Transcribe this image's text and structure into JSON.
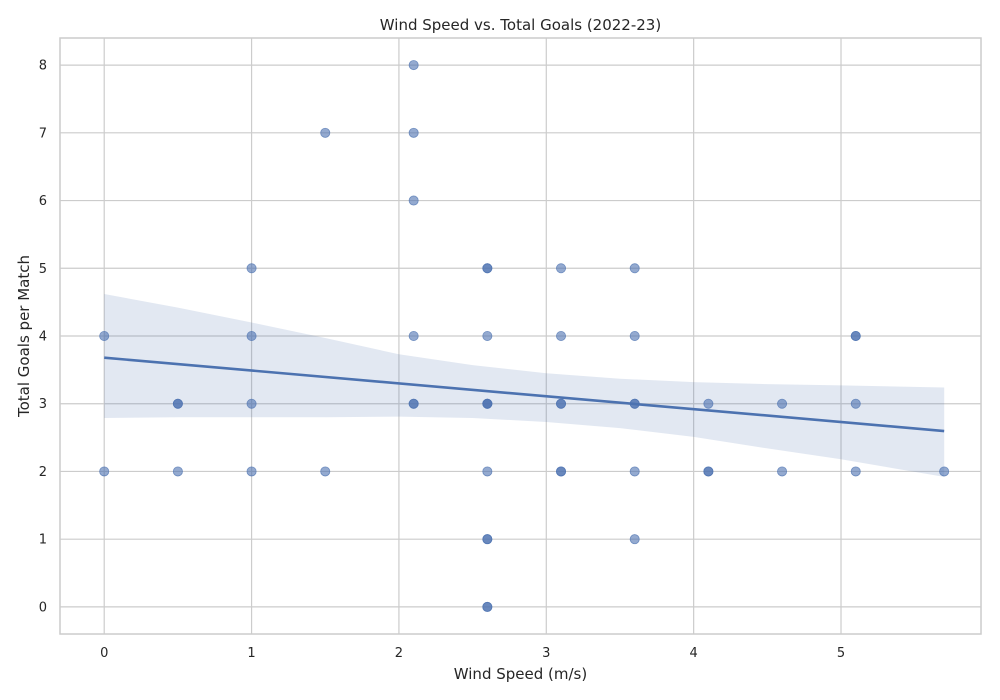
{
  "chart_data": {
    "type": "scatter",
    "title": "Wind Speed vs. Total Goals (2022-23)",
    "xlabel": "Wind Speed (m/s)",
    "ylabel": "Total Goals per Match",
    "xlim": [
      -0.3,
      5.95
    ],
    "ylim": [
      -0.4,
      8.4
    ],
    "x_ticks": [
      0,
      1,
      2,
      3,
      4,
      5
    ],
    "y_ticks": [
      0,
      1,
      2,
      3,
      4,
      5,
      6,
      7,
      8
    ],
    "grid": true,
    "color": "#4c72b0",
    "points": [
      {
        "x": 0,
        "y": 4
      },
      {
        "x": 0,
        "y": 2
      },
      {
        "x": 0.5,
        "y": 3
      },
      {
        "x": 0.5,
        "y": 3
      },
      {
        "x": 0.5,
        "y": 2
      },
      {
        "x": 1,
        "y": 5
      },
      {
        "x": 1,
        "y": 4
      },
      {
        "x": 1,
        "y": 3
      },
      {
        "x": 1,
        "y": 2
      },
      {
        "x": 1.5,
        "y": 7
      },
      {
        "x": 1.5,
        "y": 2
      },
      {
        "x": 2.1,
        "y": 8
      },
      {
        "x": 2.1,
        "y": 7
      },
      {
        "x": 2.1,
        "y": 6
      },
      {
        "x": 2.1,
        "y": 4
      },
      {
        "x": 2.1,
        "y": 3
      },
      {
        "x": 2.1,
        "y": 3
      },
      {
        "x": 2.6,
        "y": 5
      },
      {
        "x": 2.6,
        "y": 5
      },
      {
        "x": 2.6,
        "y": 4
      },
      {
        "x": 2.6,
        "y": 3
      },
      {
        "x": 2.6,
        "y": 3
      },
      {
        "x": 2.6,
        "y": 3
      },
      {
        "x": 2.6,
        "y": 2
      },
      {
        "x": 2.6,
        "y": 1
      },
      {
        "x": 2.6,
        "y": 1
      },
      {
        "x": 2.6,
        "y": 0
      },
      {
        "x": 2.6,
        "y": 0
      },
      {
        "x": 3.1,
        "y": 5
      },
      {
        "x": 3.1,
        "y": 4
      },
      {
        "x": 3.1,
        "y": 3
      },
      {
        "x": 3.1,
        "y": 3
      },
      {
        "x": 3.1,
        "y": 2
      },
      {
        "x": 3.1,
        "y": 2
      },
      {
        "x": 3.6,
        "y": 5
      },
      {
        "x": 3.6,
        "y": 4
      },
      {
        "x": 3.6,
        "y": 3
      },
      {
        "x": 3.6,
        "y": 3
      },
      {
        "x": 3.6,
        "y": 2
      },
      {
        "x": 3.6,
        "y": 1
      },
      {
        "x": 4.1,
        "y": 3
      },
      {
        "x": 4.1,
        "y": 2
      },
      {
        "x": 4.1,
        "y": 2
      },
      {
        "x": 4.6,
        "y": 3
      },
      {
        "x": 4.6,
        "y": 2
      },
      {
        "x": 5.1,
        "y": 4
      },
      {
        "x": 5.1,
        "y": 4
      },
      {
        "x": 5.1,
        "y": 3
      },
      {
        "x": 5.1,
        "y": 2
      },
      {
        "x": 5.7,
        "y": 2
      }
    ],
    "regression": {
      "x_range": [
        0,
        5.7
      ],
      "intercept": 3.68,
      "slope": -0.19,
      "ci_band": {
        "x": [
          0,
          0.5,
          1,
          1.5,
          2,
          2.5,
          3,
          3.5,
          4,
          4.5,
          5,
          5.7
        ],
        "upper": [
          4.62,
          4.42,
          4.2,
          3.97,
          3.73,
          3.57,
          3.45,
          3.37,
          3.32,
          3.29,
          3.27,
          3.24
        ],
        "lower": [
          2.79,
          2.8,
          2.8,
          2.8,
          2.81,
          2.79,
          2.73,
          2.64,
          2.51,
          2.34,
          2.18,
          1.92
        ]
      }
    }
  }
}
